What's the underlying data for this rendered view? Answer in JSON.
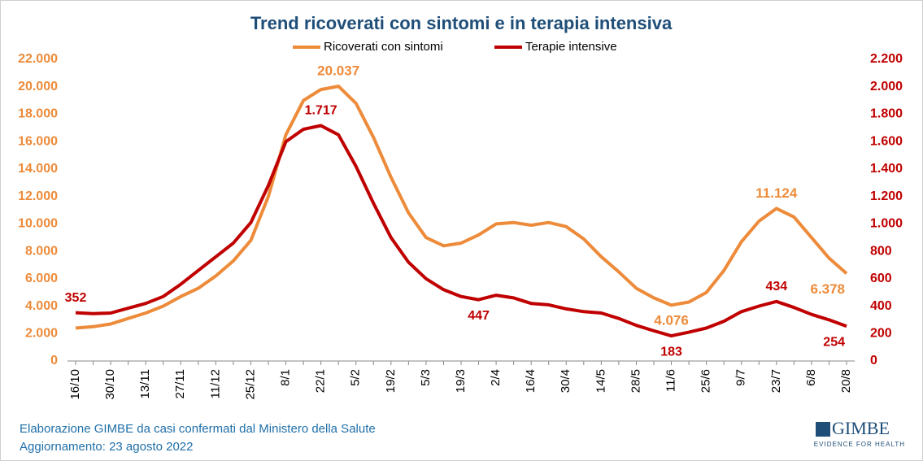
{
  "chart_data": {
    "type": "line",
    "title": "Trend ricoverati con sintomi e in terapia intensiva",
    "categories": [
      "16/10",
      null,
      "30/10",
      null,
      "13/11",
      null,
      "27/11",
      null,
      "11/12",
      null,
      "25/12",
      null,
      "8/1",
      null,
      "22/1",
      null,
      "5/2",
      null,
      "19/2",
      null,
      "5/3",
      null,
      "19/3",
      null,
      "2/4",
      null,
      "16/4",
      null,
      "30/4",
      null,
      "14/5",
      null,
      "28/5",
      null,
      "11/6",
      null,
      "25/6",
      null,
      "9/7",
      null,
      "23/7",
      null,
      "6/8",
      null,
      "20/8"
    ],
    "series": [
      {
        "name": "Ricoverati con sintomi",
        "color": "#ED8B3A",
        "values": [
          2400,
          2500,
          2700,
          3100,
          3500,
          4000,
          4700,
          5300,
          6200,
          7300,
          8800,
          12000,
          16500,
          19000,
          19800,
          20037,
          18800,
          16300,
          13400,
          10800,
          9000,
          8400,
          8600,
          9200,
          10000,
          10100,
          9900,
          10100,
          9800,
          8900,
          7600,
          6500,
          5300,
          4600,
          4076,
          4300,
          5000,
          6600,
          8700,
          10200,
          11124,
          10500,
          9000,
          7500,
          6378
        ],
        "value_labels": [
          null,
          null,
          null,
          null,
          null,
          null,
          null,
          null,
          null,
          null,
          null,
          null,
          null,
          null,
          null,
          "20.037",
          null,
          null,
          null,
          null,
          null,
          null,
          null,
          null,
          null,
          null,
          null,
          null,
          null,
          null,
          null,
          null,
          null,
          null,
          "4.076",
          null,
          null,
          null,
          null,
          null,
          "11.124",
          null,
          null,
          null,
          "6.378"
        ]
      },
      {
        "name": "Terapie intensive",
        "color": "#C00000",
        "axis": "y2",
        "values": [
          352,
          345,
          350,
          385,
          420,
          470,
          560,
          660,
          760,
          860,
          1010,
          1280,
          1600,
          1690,
          1717,
          1650,
          1420,
          1150,
          900,
          720,
          600,
          520,
          470,
          447,
          480,
          460,
          420,
          410,
          380,
          360,
          350,
          310,
          260,
          220,
          183,
          210,
          240,
          290,
          360,
          400,
          434,
          390,
          340,
          300,
          254
        ],
        "value_labels": [
          "352",
          null,
          null,
          null,
          null,
          null,
          null,
          null,
          null,
          null,
          null,
          null,
          null,
          null,
          "1.717",
          null,
          null,
          null,
          null,
          null,
          null,
          null,
          null,
          "447",
          null,
          null,
          null,
          null,
          null,
          null,
          null,
          null,
          null,
          null,
          "183",
          null,
          null,
          null,
          null,
          null,
          "434",
          null,
          null,
          null,
          "254"
        ]
      }
    ],
    "ylim": [
      0,
      22000
    ],
    "yticks": [
      0,
      {
        "value": 2000,
        "label": "2.000"
      },
      {
        "value": 4000,
        "label": "4.000"
      },
      {
        "value": 6000,
        "label": "6.000"
      },
      {
        "value": 8000,
        "label": "8.000"
      },
      {
        "value": 10000,
        "label": "10.000"
      },
      {
        "value": 12000,
        "label": "12.000"
      },
      {
        "value": 14000,
        "label": "14.000"
      },
      {
        "value": 16000,
        "label": "16.000"
      },
      {
        "value": 18000,
        "label": "18.000"
      },
      {
        "value": 20000,
        "label": "20.000"
      },
      {
        "value": 22000,
        "label": "22.000"
      }
    ],
    "y2lim": [
      0,
      2200
    ],
    "y2ticks": [
      0,
      200,
      400,
      600,
      800,
      {
        "value": 1000,
        "label": "1.000"
      },
      {
        "value": 1200,
        "label": "1.200"
      },
      {
        "value": 1400,
        "label": "1.400"
      },
      {
        "value": 1600,
        "label": "1.600"
      },
      {
        "value": 1800,
        "label": "1.800"
      },
      {
        "value": 2000,
        "label": "2.000"
      },
      {
        "value": 2200,
        "label": "2.200"
      }
    ],
    "grid": false,
    "legend": "top",
    "footer": [
      "Elaborazione GIMBE da casi confermati dal Ministero della Salute",
      "Aggiornamento:  23 agosto 2022"
    ],
    "logo": {
      "name": "GIMBE",
      "tagline": "EVIDENCE FOR HEALTH"
    }
  }
}
